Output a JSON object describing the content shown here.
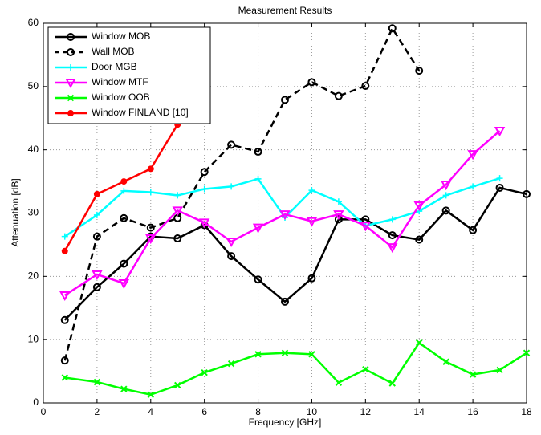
{
  "chart_data": {
    "type": "line",
    "title": "Measurement Results",
    "x_label": "Frequency [GHz]",
    "y_label": "Attenuation [dB]",
    "xlim": [
      0,
      18
    ],
    "xticks": [
      0,
      2,
      4,
      6,
      8,
      10,
      12,
      14,
      16,
      18
    ],
    "ylim": [
      0,
      60
    ],
    "yticks": [
      0,
      10,
      20,
      30,
      40,
      50,
      60
    ],
    "grid": true,
    "legend": "upper-left",
    "series": [
      {
        "name": "Window MOB",
        "color": "#000000",
        "marker": "circle",
        "linestyle": "solid",
        "x": [
          0.8,
          2,
          3,
          4,
          5,
          6,
          7,
          8,
          9,
          10,
          11,
          12,
          13,
          14,
          15,
          16,
          17,
          18
        ],
        "values": [
          13.1,
          18.3,
          22,
          26.3,
          26,
          28.1,
          23.2,
          19.5,
          16,
          19.7,
          29,
          29,
          26.5,
          25.8,
          30.4,
          27.3,
          34,
          33
        ]
      },
      {
        "name": "Wall MOB",
        "color": "#000000",
        "marker": "circle",
        "linestyle": "dashed",
        "x": [
          0.8,
          2,
          3,
          4,
          5,
          6,
          7,
          8,
          9,
          10,
          11,
          12,
          13,
          14
        ],
        "values": [
          6.7,
          26.3,
          29.2,
          27.7,
          29.2,
          36.5,
          40.8,
          39.7,
          47.9,
          50.7,
          48.5,
          50.1,
          59.2,
          52.5
        ]
      },
      {
        "name": "Door MGB",
        "color": "#00ffff",
        "marker": "plus",
        "linestyle": "solid",
        "x": [
          0.8,
          2,
          3,
          4,
          5,
          6,
          7,
          8,
          9,
          10,
          11,
          12,
          13,
          14,
          15,
          16,
          17
        ],
        "values": [
          26.3,
          29.7,
          33.5,
          33.3,
          32.8,
          33.8,
          34.2,
          35.4,
          29.3,
          33.6,
          31.8,
          28,
          29,
          30.3,
          32.8,
          34.2,
          35.5
        ]
      },
      {
        "name": "Window MTF",
        "color": "#ff00ff",
        "marker": "triangle-down",
        "linestyle": "solid",
        "x": [
          0.8,
          2,
          3,
          4,
          5,
          6,
          7,
          8,
          9,
          10,
          11,
          12,
          13,
          14,
          15,
          16,
          17
        ],
        "values": [
          17,
          20.3,
          18.9,
          26,
          30.4,
          28.5,
          25.5,
          27.7,
          29.8,
          28.7,
          29.8,
          28,
          24.6,
          31.2,
          34.5,
          39.3,
          43
        ]
      },
      {
        "name": "Window OOB",
        "color": "#00ff00",
        "marker": "x",
        "linestyle": "solid",
        "x": [
          0.8,
          2,
          3,
          4,
          5,
          6,
          7,
          8,
          9,
          10,
          11,
          12,
          13,
          14,
          15,
          16,
          17,
          18
        ],
        "values": [
          4,
          3.3,
          2.2,
          1.3,
          2.8,
          4.8,
          6.2,
          7.7,
          7.9,
          7.7,
          3.2,
          5.3,
          3.1,
          9.5,
          6.5,
          4.5,
          5.2,
          7.9
        ]
      },
      {
        "name": "Window FINLAND [10]",
        "color": "#ff0000",
        "marker": "dot",
        "linestyle": "solid",
        "x": [
          0.8,
          2,
          3,
          4,
          5
        ],
        "values": [
          24,
          33,
          35,
          37,
          44
        ]
      }
    ]
  }
}
